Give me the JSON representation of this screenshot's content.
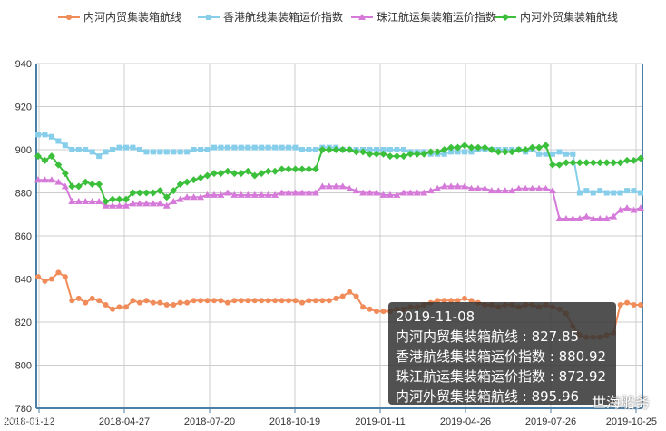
{
  "chart_data": {
    "type": "line",
    "x_ticks": [
      "2018-01-12",
      "2018-04-27",
      "2018-07-20",
      "2018-10-19",
      "2019-01-11",
      "2019-04-26",
      "2019-07-26",
      "2019-10-25"
    ],
    "ylim": [
      780,
      940
    ],
    "y_ticks": [
      780,
      800,
      820,
      840,
      860,
      880,
      900,
      920,
      940
    ],
    "grid": true,
    "legend_position": "top",
    "series": [
      {
        "name": "内河内贸集装箱航线",
        "color": "#f08c5a",
        "marker": "circle",
        "values": [
          841,
          839,
          840,
          843,
          841,
          830,
          831,
          829,
          831,
          830,
          828,
          826,
          827,
          827,
          830,
          829,
          830,
          829,
          829,
          828,
          828,
          829,
          829,
          830,
          830,
          830,
          830,
          830,
          829,
          830,
          830,
          830,
          830,
          830,
          830,
          830,
          830,
          830,
          830,
          829,
          830,
          830,
          830,
          830,
          831,
          832,
          834,
          832,
          827,
          826,
          825,
          825,
          825,
          826,
          826,
          827,
          827,
          828,
          829,
          830,
          830,
          830,
          830,
          831,
          830,
          829,
          828,
          828,
          827,
          828,
          828,
          827,
          828,
          828,
          827,
          828,
          827,
          826,
          824,
          818,
          814,
          813,
          813,
          813,
          814,
          815,
          828,
          829,
          828,
          828
        ]
      },
      {
        "name": "香港航线集装箱运价指数",
        "color": "#87ceeb",
        "marker": "square",
        "values": [
          907,
          907,
          906,
          904,
          902,
          900,
          900,
          900,
          899,
          897,
          899,
          900,
          901,
          901,
          901,
          900,
          899,
          899,
          899,
          899,
          899,
          899,
          899,
          900,
          900,
          900,
          901,
          901,
          901,
          901,
          901,
          901,
          901,
          901,
          901,
          901,
          901,
          901,
          901,
          900,
          900,
          900,
          901,
          901,
          901,
          900,
          900,
          900,
          900,
          900,
          900,
          900,
          900,
          900,
          900,
          899,
          899,
          899,
          898,
          898,
          898,
          899,
          899,
          899,
          899,
          900,
          900,
          900,
          900,
          900,
          900,
          900,
          899,
          900,
          898,
          898,
          898,
          899,
          898,
          898,
          880,
          881,
          880,
          881,
          880,
          880,
          880,
          881,
          881,
          880
        ]
      },
      {
        "name": "珠江航运集装箱运价指数",
        "color": "#d57ad9",
        "marker": "triangle",
        "values": [
          886,
          886,
          886,
          885,
          883,
          876,
          876,
          876,
          876,
          876,
          874,
          874,
          874,
          874,
          875,
          875,
          875,
          875,
          875,
          874,
          876,
          877,
          878,
          878,
          878,
          879,
          879,
          879,
          880,
          879,
          879,
          879,
          879,
          879,
          879,
          879,
          880,
          880,
          880,
          880,
          880,
          880,
          883,
          883,
          883,
          883,
          882,
          881,
          880,
          880,
          880,
          879,
          879,
          879,
          880,
          880,
          880,
          880,
          881,
          882,
          883,
          883,
          883,
          883,
          882,
          882,
          882,
          881,
          881,
          881,
          881,
          882,
          882,
          882,
          882,
          882,
          881,
          868,
          868,
          868,
          868,
          869,
          868,
          868,
          868,
          869,
          872,
          873,
          872,
          873
        ]
      },
      {
        "name": "内河外贸集装箱航线",
        "color": "#3cc03c",
        "marker": "diamond",
        "values": [
          897,
          895,
          897,
          893,
          889,
          883,
          883,
          885,
          884,
          884,
          876,
          877,
          877,
          877,
          880,
          880,
          880,
          880,
          881,
          878,
          881,
          884,
          885,
          886,
          887,
          888,
          889,
          889,
          890,
          889,
          889,
          890,
          888,
          889,
          890,
          890,
          891,
          891,
          891,
          891,
          891,
          891,
          900,
          900,
          900,
          900,
          900,
          899,
          899,
          898,
          898,
          898,
          897,
          897,
          897,
          898,
          898,
          898,
          899,
          899,
          900,
          901,
          901,
          902,
          901,
          901,
          901,
          900,
          899,
          899,
          899,
          900,
          900,
          901,
          901,
          902,
          893,
          893,
          894,
          894,
          894,
          894,
          894,
          894,
          894,
          894,
          894,
          895,
          895,
          896
        ]
      }
    ]
  },
  "tooltip": {
    "date": "2019-11-08",
    "lines": [
      "内河内贸集装箱航线 : 827.85",
      "香港航线集装箱运价指数 : 880.92",
      "珠江航运集装箱运价指数 : 872.92",
      "内河外贸集装箱航线 : 895.96"
    ]
  },
  "watermark": "世海船务",
  "watermark_left": "中国航运网"
}
